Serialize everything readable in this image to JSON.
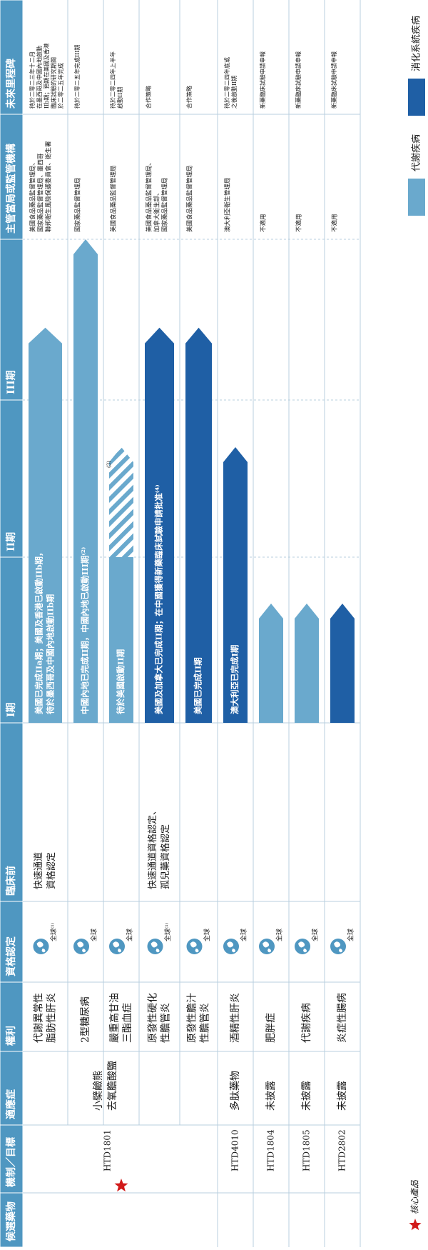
{
  "colors": {
    "header_bg": "#4f97c1",
    "light_arrow": "#6aa9cd",
    "dark_arrow": "#1f5fa5",
    "grid": "#b9cfdf",
    "star": "#d11a1a",
    "text": "#1a1a1a"
  },
  "headers": [
    "候選藥物",
    "機制／目標",
    "適應症",
    "權利",
    "資格認定",
    "臨床前",
    "I期",
    "II期",
    "III期",
    "主管當局或監管機構",
    "未來里程碑"
  ],
  "rows": [
    {
      "drug": "",
      "mechanism": "",
      "indication": "代謝異常性脂肪性肝炎",
      "rights": "全球⁽¹⁾",
      "designation": "快速通道資格認定",
      "progress_phase": 2.45,
      "style": "light",
      "bar_text": [
        "美國已完成IIa期；美國及香港已啟動IIb期，",
        "待於墨西哥及中國內地啟動IIb期"
      ],
      "regulator": [
        "美國食品藥品監督管理局、",
        "國家藥品監督管理局、墨西哥",
        "聯邦衛生風險保護委員會、衛生署"
      ],
      "milestone": [
        "待於二零二三年十二月",
        "在墨西哥及中國內地啟動",
        "IIb期；預期在美國及香港",
        "臨床試驗的研究期間",
        "於二零二五年完成"
      ]
    },
    {
      "drug": "",
      "mechanism": "",
      "indication": "2型糖尿病",
      "rights": "全球",
      "designation": "",
      "progress_phase": 3.0,
      "style": "light",
      "bar_text": [
        "中國內地已完成II期，中國內地已啟動III期⁽²⁾"
      ],
      "regulator": [
        "國家藥品監督管理局"
      ],
      "milestone": [
        "待於二零二五年完成III期"
      ]
    },
    {
      "drug": "HTD1801",
      "mechanism": "小檗鹼熊去氧膽酸鹽",
      "indication": "嚴重高甘油三酯血症",
      "rights": "全球",
      "designation": "",
      "progress_phase": 1.7,
      "style": "hatched",
      "bar_text": [
        "待於美國啟動II期"
      ],
      "hatch_note": "(3)",
      "regulator": [
        "美國食品藥品監督管理局"
      ],
      "milestone": [
        "待於二零二四年上半年",
        "啟動II期"
      ]
    },
    {
      "drug": "",
      "mechanism": "",
      "indication": "原發性硬化性膽管炎",
      "rights": "全球⁽¹⁾",
      "designation": "快速通道資格認定、孤兒藥資格認定",
      "progress_phase": 2.45,
      "style": "dark",
      "bar_text": [
        "美國及加拿大已完成II期；在中國獲得新藥臨床試驗申請批准⁽⁴⁾"
      ],
      "regulator": [
        "美國食品藥品監督管理局、",
        "加拿大衛生部、",
        "國家藥品監督管理局"
      ],
      "milestone": [
        "合作策略"
      ]
    },
    {
      "drug": "",
      "mechanism": "",
      "indication": "原發性膽汁性膽管炎",
      "rights": "全球",
      "designation": "",
      "progress_phase": 2.45,
      "style": "dark",
      "bar_text": [
        "美國已完成II期"
      ],
      "regulator": [
        "美國食品藥品監督管理局"
      ],
      "milestone": [
        "合作策略"
      ]
    },
    {
      "drug": "HTD4010",
      "mechanism": "多肽藥物",
      "indication": "酒精性肝炎",
      "rights": "全球",
      "designation": "",
      "progress_phase": 1.7,
      "style": "dark",
      "bar_text": [
        "澳大利亞已完成I期"
      ],
      "regulator": [
        "澳大利亞衛生管理局"
      ],
      "milestone": [
        "待於二零二四年底或",
        "之後啟動II期"
      ]
    },
    {
      "drug": "HTD1804",
      "mechanism": "未披露",
      "indication": "肥胖症",
      "rights": "全球",
      "designation": "",
      "progress_phase": 0.72,
      "style": "light",
      "bar_text": [],
      "regulator": [
        "不適用"
      ],
      "milestone": [
        "新藥臨床試驗申請申報"
      ]
    },
    {
      "drug": "HTD1805",
      "mechanism": "未披露",
      "indication": "代謝疾病",
      "rights": "全球",
      "designation": "",
      "progress_phase": 0.72,
      "style": "light",
      "bar_text": [],
      "regulator": [
        "不適用"
      ],
      "milestone": [
        "新藥臨床試驗申請申報"
      ]
    },
    {
      "drug": "HTD2802",
      "mechanism": "未披露",
      "indication": "炎症性腸病",
      "rights": "全球",
      "designation": "",
      "progress_phase": 0.72,
      "style": "dark",
      "bar_text": [],
      "regulator": [
        "不適用"
      ],
      "milestone": [
        "新藥臨床試驗申請申報"
      ]
    }
  ],
  "chart_data": {
    "type": "table",
    "phases": [
      "臨床前",
      "I期",
      "II期",
      "III期"
    ],
    "core_product_note": "核心產品",
    "legend": [
      {
        "label": "代謝疾病",
        "color": "#6aa9cd"
      },
      {
        "label": "消化系統疾病",
        "color": "#1f5fa5"
      }
    ]
  },
  "footer": {
    "core_product_note": "核心產品"
  },
  "legend": {
    "metabolic": "代謝疾病",
    "digestive": "消化系統疾病"
  }
}
